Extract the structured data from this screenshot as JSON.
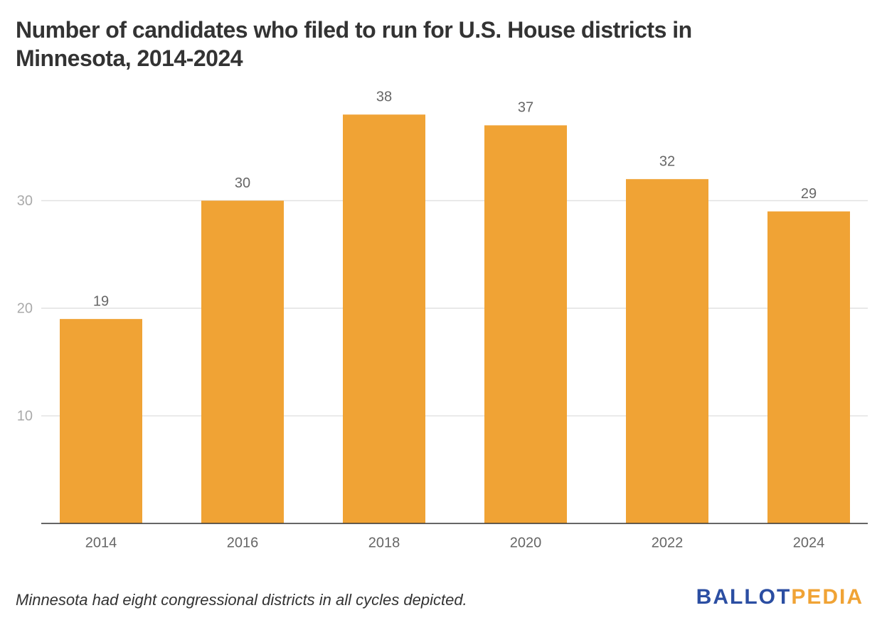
{
  "chart_data": {
    "type": "bar",
    "title": "Number of candidates who filed to run for U.S. House districts in Minnesota, 2014-2024",
    "categories": [
      "2014",
      "2016",
      "2018",
      "2020",
      "2022",
      "2024"
    ],
    "values": [
      19,
      30,
      38,
      37,
      32,
      29
    ],
    "color": "#f0a335",
    "ylim": [
      0,
      40
    ],
    "yticks": [
      10,
      20,
      30
    ],
    "grid": true,
    "note": "Minnesota had eight congressional districts in all cycles depicted.",
    "logo": {
      "first": "BALLOT",
      "second": "PEDIA"
    }
  }
}
